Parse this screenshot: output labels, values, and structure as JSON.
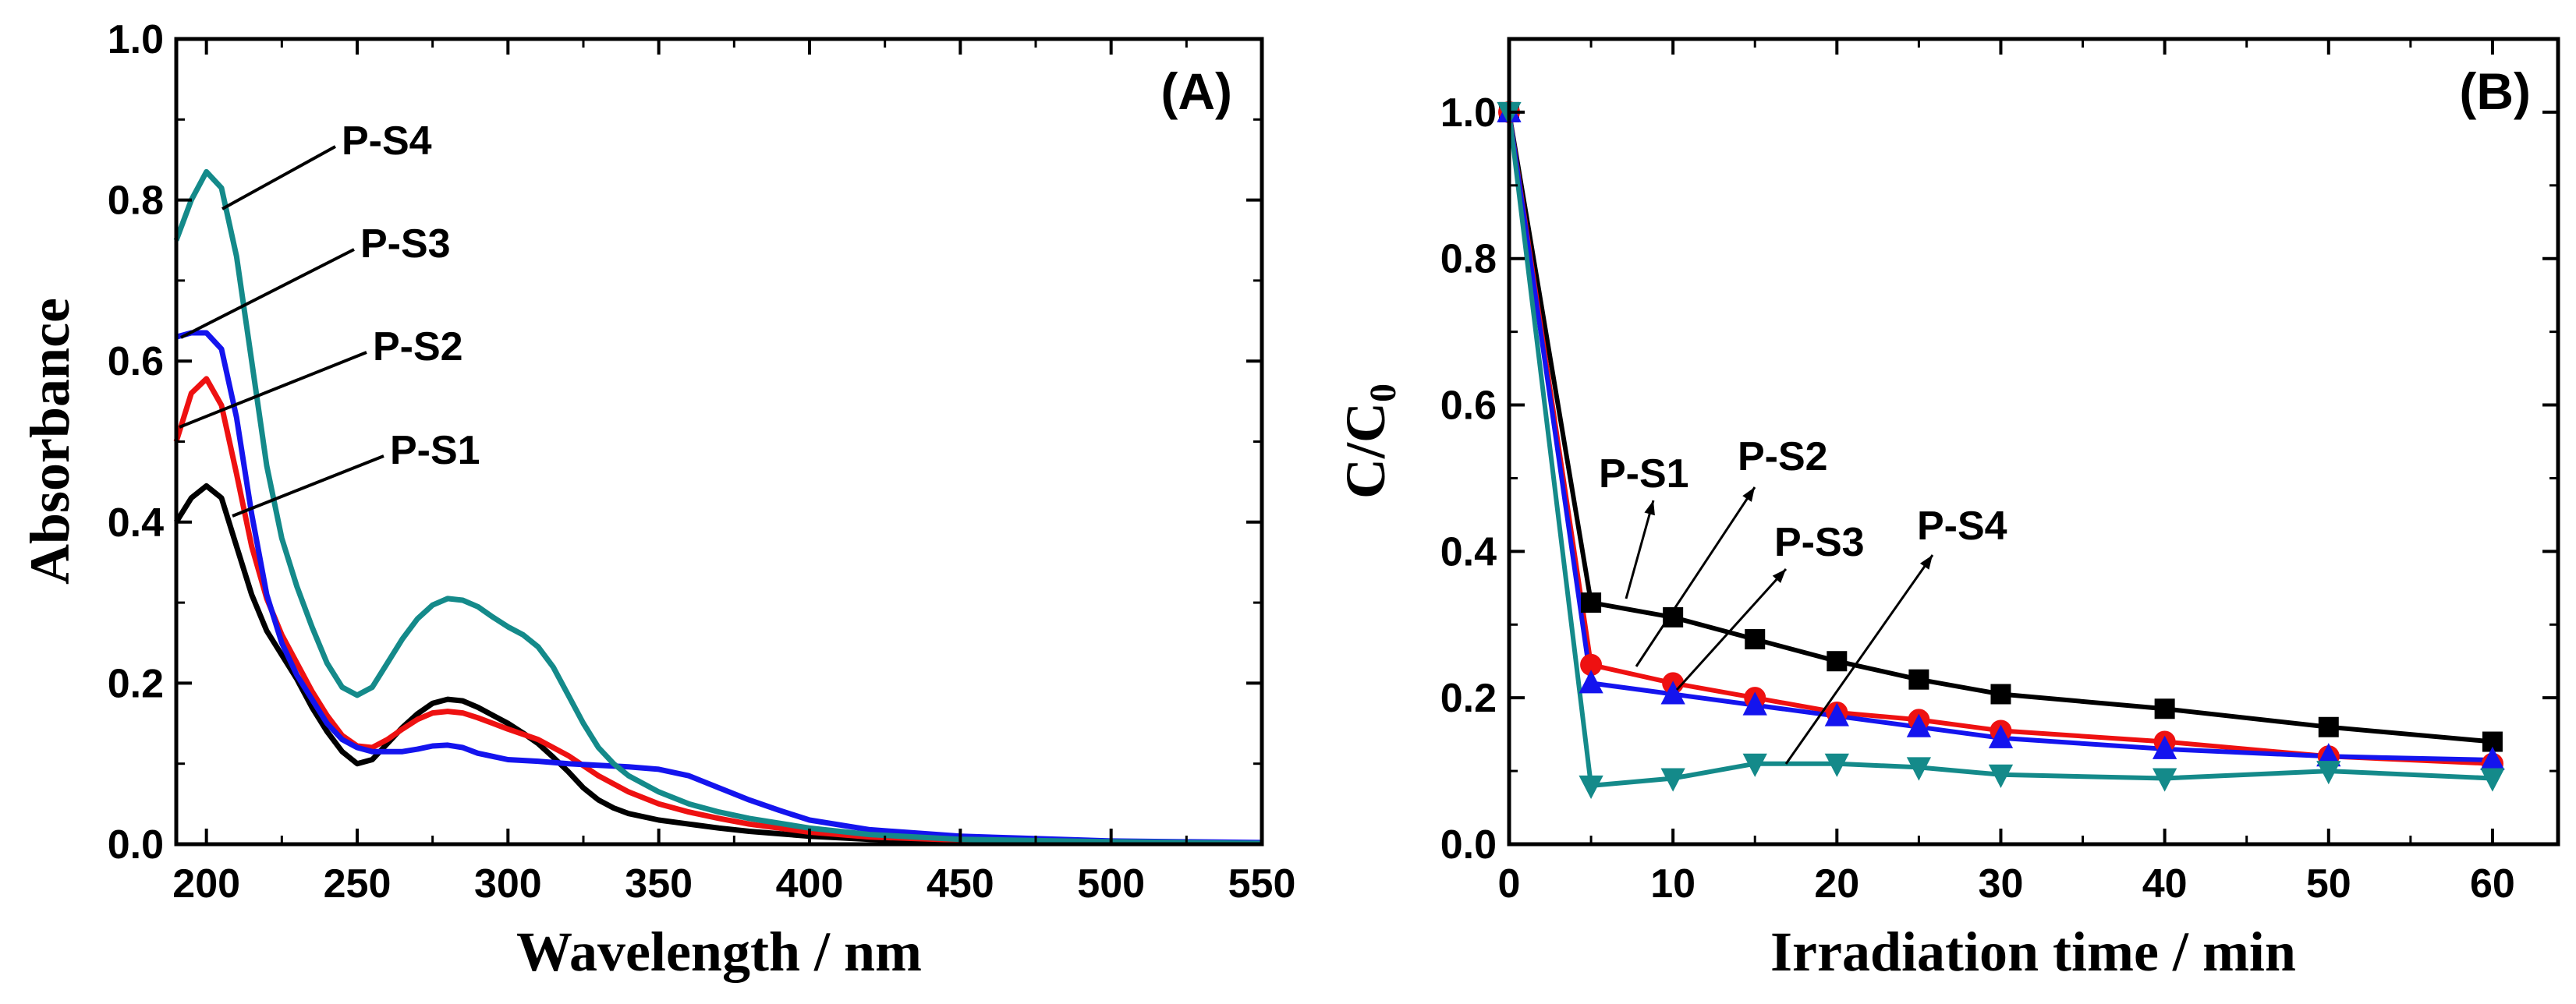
{
  "chart_data": [
    {
      "type": "line",
      "panel_label": "(A)",
      "xlabel": "Wavelength / nm",
      "ylabel": "Absorbance",
      "xlim": [
        190,
        550
      ],
      "ylim": [
        0,
        1.0
      ],
      "xticks": [
        "200",
        "250",
        "300",
        "350",
        "400",
        "450",
        "500",
        "550"
      ],
      "yticks": [
        "0.0",
        "0.2",
        "0.4",
        "0.6",
        "0.8",
        "1.0"
      ],
      "grid": false,
      "legend": "none",
      "series": [
        {
          "name": "P-S1",
          "color": "#000000",
          "points": [
            [
              190,
              0.4
            ],
            [
              195,
              0.43
            ],
            [
              200,
              0.445
            ],
            [
              205,
              0.43
            ],
            [
              210,
              0.37
            ],
            [
              215,
              0.31
            ],
            [
              220,
              0.265
            ],
            [
              225,
              0.235
            ],
            [
              230,
              0.205
            ],
            [
              235,
              0.17
            ],
            [
              240,
              0.14
            ],
            [
              245,
              0.115
            ],
            [
              250,
              0.1
            ],
            [
              255,
              0.105
            ],
            [
              260,
              0.125
            ],
            [
              265,
              0.145
            ],
            [
              270,
              0.162
            ],
            [
              275,
              0.175
            ],
            [
              280,
              0.18
            ],
            [
              285,
              0.178
            ],
            [
              290,
              0.17
            ],
            [
              295,
              0.16
            ],
            [
              300,
              0.15
            ],
            [
              305,
              0.138
            ],
            [
              310,
              0.125
            ],
            [
              315,
              0.108
            ],
            [
              320,
              0.09
            ],
            [
              325,
              0.07
            ],
            [
              330,
              0.055
            ],
            [
              335,
              0.045
            ],
            [
              340,
              0.038
            ],
            [
              350,
              0.03
            ],
            [
              360,
              0.025
            ],
            [
              370,
              0.02
            ],
            [
              380,
              0.016
            ],
            [
              400,
              0.01
            ],
            [
              420,
              0.006
            ],
            [
              450,
              0.004
            ],
            [
              500,
              0.002
            ],
            [
              550,
              0.001
            ]
          ]
        },
        {
          "name": "P-S2",
          "color": "#ee1111",
          "points": [
            [
              190,
              0.5
            ],
            [
              195,
              0.56
            ],
            [
              200,
              0.578
            ],
            [
              205,
              0.545
            ],
            [
              210,
              0.46
            ],
            [
              215,
              0.37
            ],
            [
              220,
              0.305
            ],
            [
              225,
              0.26
            ],
            [
              230,
              0.225
            ],
            [
              235,
              0.19
            ],
            [
              240,
              0.16
            ],
            [
              245,
              0.135
            ],
            [
              250,
              0.122
            ],
            [
              255,
              0.12
            ],
            [
              260,
              0.13
            ],
            [
              265,
              0.143
            ],
            [
              270,
              0.155
            ],
            [
              275,
              0.163
            ],
            [
              280,
              0.165
            ],
            [
              285,
              0.163
            ],
            [
              290,
              0.157
            ],
            [
              295,
              0.15
            ],
            [
              300,
              0.143
            ],
            [
              310,
              0.13
            ],
            [
              320,
              0.11
            ],
            [
              330,
              0.085
            ],
            [
              340,
              0.065
            ],
            [
              350,
              0.05
            ],
            [
              360,
              0.04
            ],
            [
              370,
              0.032
            ],
            [
              380,
              0.025
            ],
            [
              400,
              0.015
            ],
            [
              420,
              0.009
            ],
            [
              450,
              0.005
            ],
            [
              500,
              0.002
            ],
            [
              550,
              0.001
            ]
          ]
        },
        {
          "name": "P-S3",
          "color": "#1414ee",
          "points": [
            [
              190,
              0.63
            ],
            [
              195,
              0.635
            ],
            [
              200,
              0.635
            ],
            [
              205,
              0.615
            ],
            [
              210,
              0.53
            ],
            [
              215,
              0.41
            ],
            [
              220,
              0.31
            ],
            [
              225,
              0.25
            ],
            [
              230,
              0.21
            ],
            [
              235,
              0.18
            ],
            [
              240,
              0.15
            ],
            [
              245,
              0.13
            ],
            [
              250,
              0.12
            ],
            [
              255,
              0.115
            ],
            [
              260,
              0.115
            ],
            [
              265,
              0.115
            ],
            [
              270,
              0.118
            ],
            [
              275,
              0.122
            ],
            [
              280,
              0.123
            ],
            [
              285,
              0.12
            ],
            [
              290,
              0.113
            ],
            [
              300,
              0.105
            ],
            [
              310,
              0.103
            ],
            [
              320,
              0.1
            ],
            [
              330,
              0.098
            ],
            [
              340,
              0.096
            ],
            [
              350,
              0.093
            ],
            [
              360,
              0.085
            ],
            [
              370,
              0.07
            ],
            [
              380,
              0.055
            ],
            [
              390,
              0.042
            ],
            [
              400,
              0.03
            ],
            [
              420,
              0.018
            ],
            [
              450,
              0.01
            ],
            [
              500,
              0.004
            ],
            [
              550,
              0.002
            ]
          ]
        },
        {
          "name": "P-S4",
          "color": "#148a8a",
          "points": [
            [
              190,
              0.75
            ],
            [
              195,
              0.8
            ],
            [
              200,
              0.835
            ],
            [
              205,
              0.815
            ],
            [
              210,
              0.73
            ],
            [
              215,
              0.6
            ],
            [
              220,
              0.47
            ],
            [
              225,
              0.38
            ],
            [
              230,
              0.32
            ],
            [
              235,
              0.27
            ],
            [
              240,
              0.225
            ],
            [
              245,
              0.195
            ],
            [
              250,
              0.185
            ],
            [
              255,
              0.195
            ],
            [
              260,
              0.225
            ],
            [
              265,
              0.255
            ],
            [
              270,
              0.28
            ],
            [
              275,
              0.297
            ],
            [
              280,
              0.305
            ],
            [
              285,
              0.303
            ],
            [
              290,
              0.295
            ],
            [
              295,
              0.282
            ],
            [
              300,
              0.27
            ],
            [
              305,
              0.26
            ],
            [
              310,
              0.245
            ],
            [
              315,
              0.22
            ],
            [
              320,
              0.185
            ],
            [
              325,
              0.15
            ],
            [
              330,
              0.12
            ],
            [
              335,
              0.1
            ],
            [
              340,
              0.085
            ],
            [
              350,
              0.065
            ],
            [
              360,
              0.05
            ],
            [
              370,
              0.04
            ],
            [
              380,
              0.032
            ],
            [
              400,
              0.02
            ],
            [
              420,
              0.012
            ],
            [
              450,
              0.006
            ],
            [
              500,
              0.003
            ],
            [
              550,
              0.001
            ]
          ]
        }
      ]
    },
    {
      "type": "line",
      "panel_label": "(B)",
      "xlabel": "Irradiation time / min",
      "ylabel": "C/C",
      "ylabel_sub": "0",
      "xlim": [
        0,
        64
      ],
      "ylim": [
        0,
        1.1
      ],
      "xticks": [
        "0",
        "10",
        "20",
        "30",
        "40",
        "50",
        "60"
      ],
      "yticks": [
        "0.0",
        "0.2",
        "0.4",
        "0.6",
        "0.8",
        "1.0"
      ],
      "grid": false,
      "legend": "none",
      "x": [
        0,
        5,
        10,
        15,
        20,
        25,
        30,
        40,
        50,
        60
      ],
      "series": [
        {
          "name": "P-S1",
          "color": "#000000",
          "marker": "square",
          "values": [
            1.0,
            0.33,
            0.31,
            0.28,
            0.25,
            0.225,
            0.205,
            0.185,
            0.16,
            0.14
          ]
        },
        {
          "name": "P-S2",
          "color": "#ee1111",
          "marker": "circle",
          "values": [
            1.0,
            0.245,
            0.22,
            0.2,
            0.18,
            0.17,
            0.155,
            0.14,
            0.12,
            0.11
          ]
        },
        {
          "name": "P-S3",
          "color": "#1414ee",
          "marker": "triangle-up",
          "values": [
            1.0,
            0.22,
            0.205,
            0.19,
            0.175,
            0.16,
            0.145,
            0.13,
            0.12,
            0.115
          ]
        },
        {
          "name": "P-S4",
          "color": "#148a8a",
          "marker": "triangle-down",
          "values": [
            1.0,
            0.08,
            0.09,
            0.11,
            0.11,
            0.105,
            0.095,
            0.09,
            0.1,
            0.09
          ]
        }
      ]
    }
  ]
}
